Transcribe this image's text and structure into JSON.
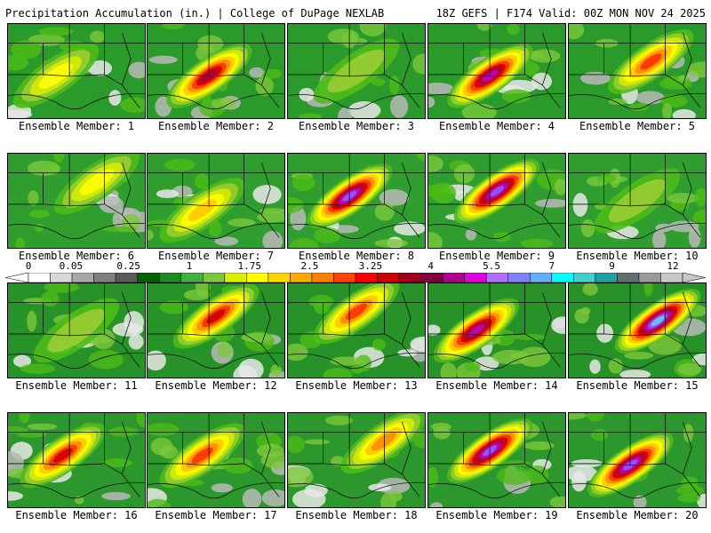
{
  "header": {
    "title": "Precipitation Accumulation (in.) | College of DuPage NEXLAB",
    "run_info": "18Z GEFS | F174 Valid: 00Z MON NOV 24 2025"
  },
  "colorbar": {
    "labels": [
      "0",
      "0.05",
      "0.25",
      "1",
      "1.75",
      "2.5",
      "3.25",
      "4",
      "5.5",
      "7",
      "9",
      "12"
    ],
    "colors": [
      "#ffffff",
      "#d8d8d8",
      "#a8a8a8",
      "#808080",
      "#5a5a5a",
      "#006400",
      "#1f8a1f",
      "#3cb043",
      "#7cc83a",
      "#d8f000",
      "#ffff00",
      "#ffd400",
      "#ffaa00",
      "#ff7f00",
      "#ff4500",
      "#ff0000",
      "#d00000",
      "#a00020",
      "#800040",
      "#b00090",
      "#e000e0",
      "#b070ff",
      "#8080ff",
      "#60b0ff",
      "#00ffff",
      "#40d0d0",
      "#20a0a0",
      "#607070",
      "#9a9a9a",
      "#c8c8c8"
    ],
    "label_positions": [
      0,
      0.065,
      0.153,
      0.246,
      0.338,
      0.43,
      0.523,
      0.615,
      0.708,
      0.8,
      0.892,
      0.985
    ]
  },
  "members": [
    {
      "label": "Ensemble Member: 1",
      "intensity": 0.35,
      "core": [
        0.35,
        0.55
      ]
    },
    {
      "label": "Ensemble Member: 2",
      "intensity": 0.75,
      "core": [
        0.45,
        0.55
      ]
    },
    {
      "label": "Ensemble Member: 3",
      "intensity": 0.15,
      "core": [
        0.5,
        0.5
      ]
    },
    {
      "label": "Ensemble Member: 4",
      "intensity": 0.85,
      "core": [
        0.45,
        0.55
      ]
    },
    {
      "label": "Ensemble Member: 5",
      "intensity": 0.55,
      "core": [
        0.6,
        0.4
      ]
    },
    {
      "label": "Ensemble Member: 6",
      "intensity": 0.35,
      "core": [
        0.65,
        0.3
      ]
    },
    {
      "label": "Ensemble Member: 7",
      "intensity": 0.45,
      "core": [
        0.4,
        0.6
      ]
    },
    {
      "label": "Ensemble Member: 8",
      "intensity": 0.9,
      "core": [
        0.45,
        0.45
      ]
    },
    {
      "label": "Ensemble Member: 9",
      "intensity": 0.9,
      "core": [
        0.5,
        0.4
      ]
    },
    {
      "label": "Ensemble Member: 10",
      "intensity": 0.2,
      "core": [
        0.5,
        0.5
      ]
    },
    {
      "label": "Ensemble Member: 11",
      "intensity": 0.2,
      "core": [
        0.5,
        0.5
      ]
    },
    {
      "label": "Ensemble Member: 12",
      "intensity": 0.65,
      "core": [
        0.5,
        0.35
      ]
    },
    {
      "label": "Ensemble Member: 13",
      "intensity": 0.6,
      "core": [
        0.5,
        0.3
      ]
    },
    {
      "label": "Ensemble Member: 14",
      "intensity": 0.85,
      "core": [
        0.35,
        0.5
      ]
    },
    {
      "label": "Ensemble Member: 15",
      "intensity": 1.0,
      "core": [
        0.65,
        0.4
      ]
    },
    {
      "label": "Ensemble Member: 16",
      "intensity": 0.65,
      "core": [
        0.4,
        0.45
      ]
    },
    {
      "label": "Ensemble Member: 17",
      "intensity": 0.55,
      "core": [
        0.4,
        0.45
      ]
    },
    {
      "label": "Ensemble Member: 18",
      "intensity": 0.5,
      "core": [
        0.7,
        0.3
      ]
    },
    {
      "label": "Ensemble Member: 19",
      "intensity": 0.95,
      "core": [
        0.45,
        0.4
      ]
    },
    {
      "label": "Ensemble Member: 20",
      "intensity": 0.95,
      "core": [
        0.45,
        0.55
      ]
    }
  ]
}
